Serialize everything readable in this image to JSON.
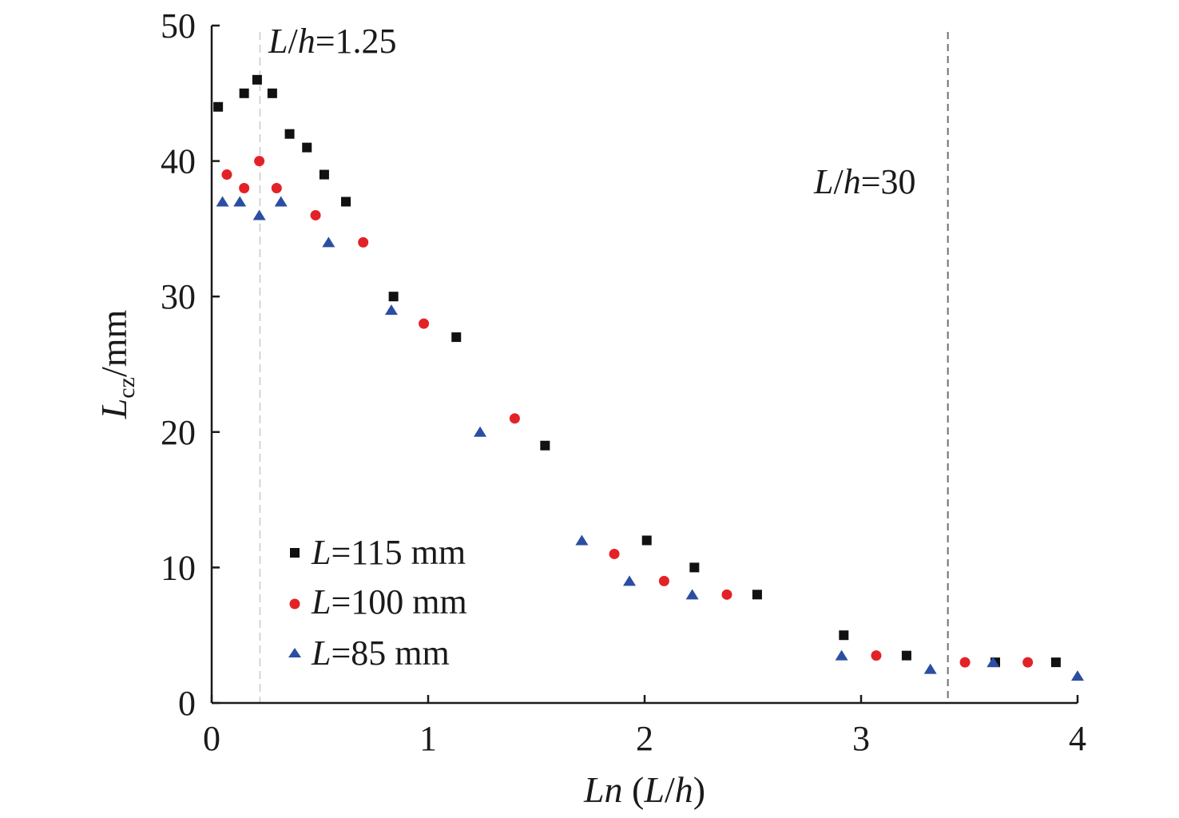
{
  "chart_data": {
    "type": "scatter",
    "title": "",
    "xlim": [
      0,
      4
    ],
    "ylim": [
      0,
      50
    ],
    "xticks": [
      "0",
      "1",
      "2",
      "3",
      "4"
    ],
    "yticks": [
      "0",
      "10",
      "20",
      "30",
      "40",
      "50"
    ],
    "xlabel": {
      "italic_part": "Ln",
      "rest_open": " (",
      "L": "L",
      "slash": "/",
      "h": "h",
      "close": ")"
    },
    "ylabel": {
      "L": "L",
      "sub": "cz",
      "unit": "/mm"
    },
    "grid": false,
    "legend_position": "bottom-left",
    "reference_lines": [
      {
        "x": 0.223,
        "label_var": "L",
        "label_slash": "/",
        "label_var2": "h",
        "label_rest": "=1.25",
        "style": "light-dashed"
      },
      {
        "x": 3.401,
        "label_var": "L",
        "label_slash": "/",
        "label_var2": "h",
        "label_rest": "=30",
        "style": "dashed"
      }
    ],
    "series": [
      {
        "name": "L=115 mm",
        "legend_var": "L",
        "legend_rest": "=115 mm",
        "marker": "square",
        "color": "#111111",
        "points": [
          [
            0.03,
            44
          ],
          [
            0.15,
            45
          ],
          [
            0.21,
            46
          ],
          [
            0.28,
            45
          ],
          [
            0.36,
            42
          ],
          [
            0.44,
            41
          ],
          [
            0.52,
            39
          ],
          [
            0.62,
            37
          ],
          [
            0.84,
            30
          ],
          [
            1.13,
            27
          ],
          [
            1.54,
            19
          ],
          [
            2.01,
            12
          ],
          [
            2.23,
            10
          ],
          [
            2.52,
            8
          ],
          [
            2.92,
            5
          ],
          [
            3.21,
            3.5
          ],
          [
            3.62,
            3
          ],
          [
            3.9,
            3
          ]
        ]
      },
      {
        "name": "L=100 mm",
        "legend_var": "L",
        "legend_rest": "=100 mm",
        "marker": "circle",
        "color": "#e32227",
        "points": [
          [
            0.07,
            39
          ],
          [
            0.15,
            38
          ],
          [
            0.22,
            40
          ],
          [
            0.3,
            38
          ],
          [
            0.48,
            36
          ],
          [
            0.7,
            34
          ],
          [
            0.98,
            28
          ],
          [
            1.4,
            21
          ],
          [
            1.86,
            11
          ],
          [
            2.09,
            9
          ],
          [
            2.38,
            8
          ],
          [
            3.07,
            3.5
          ],
          [
            3.48,
            3
          ],
          [
            3.77,
            3
          ]
        ]
      },
      {
        "name": "L=85 mm",
        "legend_var": "L",
        "legend_rest": "=85 mm",
        "marker": "triangle",
        "color": "#2b4ea2",
        "points": [
          [
            0.05,
            37
          ],
          [
            0.13,
            37
          ],
          [
            0.22,
            36
          ],
          [
            0.32,
            37
          ],
          [
            0.54,
            34
          ],
          [
            0.83,
            29
          ],
          [
            1.24,
            20
          ],
          [
            1.71,
            12
          ],
          [
            1.93,
            9
          ],
          [
            2.22,
            8
          ],
          [
            2.91,
            3.5
          ],
          [
            3.32,
            2.5
          ],
          [
            3.61,
            3
          ],
          [
            4.0,
            2
          ]
        ]
      }
    ]
  }
}
